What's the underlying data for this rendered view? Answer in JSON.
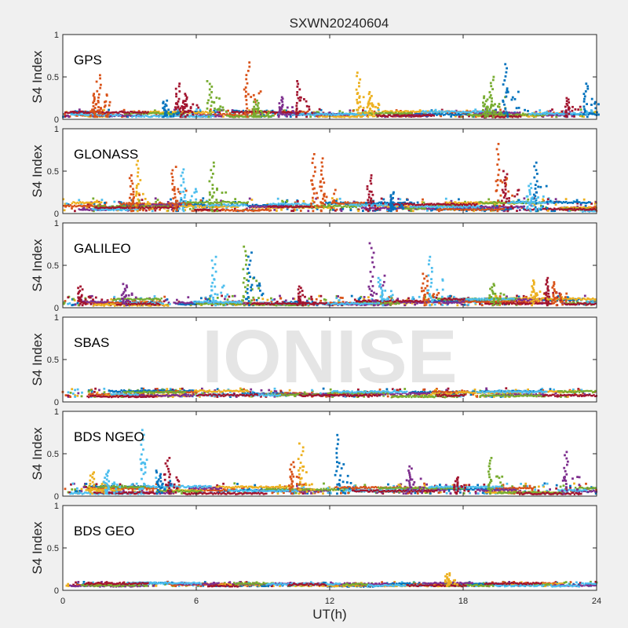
{
  "title": "SXWN20240604",
  "watermark": "IONISE",
  "xlabel": "UT(h)",
  "xlim": [
    0,
    24
  ],
  "xticks": [
    0,
    6,
    12,
    18,
    24
  ],
  "colors": [
    "#0072bd",
    "#d95319",
    "#edb120",
    "#7e2f8e",
    "#77ac30",
    "#4dbeee",
    "#a2142f"
  ],
  "chart_data": [
    {
      "type": "scatter",
      "panel": "GPS",
      "ylabel": "S4 Index",
      "ylim": [
        0,
        1
      ],
      "yticks": [
        0,
        0.5,
        1
      ],
      "baseline": [
        0.03,
        0.12
      ],
      "spikes": [
        {
          "x": 1.6,
          "peak": 0.52,
          "color": 1
        },
        {
          "x": 1.4,
          "peak": 0.3,
          "color": 1
        },
        {
          "x": 5.2,
          "peak": 0.42,
          "color": 6
        },
        {
          "x": 5.5,
          "peak": 0.3,
          "color": 6
        },
        {
          "x": 4.6,
          "peak": 0.22,
          "color": 0
        },
        {
          "x": 6.6,
          "peak": 0.45,
          "color": 4
        },
        {
          "x": 8.3,
          "peak": 0.67,
          "color": 1
        },
        {
          "x": 8.7,
          "peak": 0.22,
          "color": 4
        },
        {
          "x": 10.6,
          "peak": 0.45,
          "color": 6
        },
        {
          "x": 9.8,
          "peak": 0.26,
          "color": 3
        },
        {
          "x": 13.3,
          "peak": 0.55,
          "color": 2
        },
        {
          "x": 13.8,
          "peak": 0.32,
          "color": 2
        },
        {
          "x": 19.3,
          "peak": 0.5,
          "color": 4
        },
        {
          "x": 19.0,
          "peak": 0.27,
          "color": 4
        },
        {
          "x": 19.9,
          "peak": 0.65,
          "color": 0
        },
        {
          "x": 22.7,
          "peak": 0.25,
          "color": 6
        },
        {
          "x": 23.5,
          "peak": 0.42,
          "color": 0
        }
      ]
    },
    {
      "type": "scatter",
      "panel": "GLONASS",
      "ylabel": "S4 Index",
      "ylim": [
        0,
        1
      ],
      "yticks": [
        0,
        0.5,
        1
      ],
      "baseline": [
        0.03,
        0.18
      ],
      "spikes": [
        {
          "x": 3.4,
          "peak": 0.62,
          "color": 2
        },
        {
          "x": 3.1,
          "peak": 0.45,
          "color": 1
        },
        {
          "x": 5.0,
          "peak": 0.55,
          "color": 1
        },
        {
          "x": 5.4,
          "peak": 0.52,
          "color": 5
        },
        {
          "x": 6.7,
          "peak": 0.6,
          "color": 4
        },
        {
          "x": 11.3,
          "peak": 0.7,
          "color": 1
        },
        {
          "x": 11.7,
          "peak": 0.65,
          "color": 1
        },
        {
          "x": 13.8,
          "peak": 0.45,
          "color": 6
        },
        {
          "x": 14.8,
          "peak": 0.25,
          "color": 0
        },
        {
          "x": 19.6,
          "peak": 0.82,
          "color": 1
        },
        {
          "x": 19.9,
          "peak": 0.5,
          "color": 6
        },
        {
          "x": 21.3,
          "peak": 0.6,
          "color": 0
        },
        {
          "x": 21.0,
          "peak": 0.35,
          "color": 5
        }
      ]
    },
    {
      "type": "scatter",
      "panel": "GALILEO",
      "ylabel": "S4 Index",
      "ylim": [
        0,
        1
      ],
      "yticks": [
        0,
        0.5,
        1
      ],
      "baseline": [
        0.03,
        0.14
      ],
      "spikes": [
        {
          "x": 0.8,
          "peak": 0.25,
          "color": 6
        },
        {
          "x": 2.8,
          "peak": 0.28,
          "color": 3
        },
        {
          "x": 6.8,
          "peak": 0.6,
          "color": 5
        },
        {
          "x": 8.2,
          "peak": 0.72,
          "color": 4
        },
        {
          "x": 8.4,
          "peak": 0.65,
          "color": 0
        },
        {
          "x": 10.7,
          "peak": 0.25,
          "color": 6
        },
        {
          "x": 13.9,
          "peak": 0.76,
          "color": 3
        },
        {
          "x": 14.3,
          "peak": 0.35,
          "color": 5
        },
        {
          "x": 16.5,
          "peak": 0.6,
          "color": 5
        },
        {
          "x": 16.3,
          "peak": 0.4,
          "color": 1
        },
        {
          "x": 19.3,
          "peak": 0.28,
          "color": 4
        },
        {
          "x": 21.2,
          "peak": 0.32,
          "color": 2
        },
        {
          "x": 21.8,
          "peak": 0.35,
          "color": 6
        },
        {
          "x": 22.1,
          "peak": 0.3,
          "color": 1
        }
      ]
    },
    {
      "type": "scatter",
      "panel": "SBAS",
      "ylabel": "S4 Index",
      "ylim": [
        0,
        1
      ],
      "yticks": [
        0,
        0.5,
        1
      ],
      "baseline": [
        0.06,
        0.16
      ],
      "spikes": []
    },
    {
      "type": "scatter",
      "panel": "BDS NGEO",
      "ylabel": "S4 Index",
      "ylim": [
        0,
        1
      ],
      "yticks": [
        0,
        0.5,
        1
      ],
      "baseline": [
        0.03,
        0.15
      ],
      "spikes": [
        {
          "x": 1.3,
          "peak": 0.28,
          "color": 2
        },
        {
          "x": 2.0,
          "peak": 0.3,
          "color": 5
        },
        {
          "x": 3.6,
          "peak": 0.78,
          "color": 5
        },
        {
          "x": 4.3,
          "peak": 0.3,
          "color": 0
        },
        {
          "x": 4.7,
          "peak": 0.45,
          "color": 6
        },
        {
          "x": 10.3,
          "peak": 0.4,
          "color": 1
        },
        {
          "x": 10.7,
          "peak": 0.62,
          "color": 2
        },
        {
          "x": 12.4,
          "peak": 0.72,
          "color": 0
        },
        {
          "x": 15.6,
          "peak": 0.35,
          "color": 3
        },
        {
          "x": 17.7,
          "peak": 0.22,
          "color": 6
        },
        {
          "x": 19.2,
          "peak": 0.45,
          "color": 4
        },
        {
          "x": 22.6,
          "peak": 0.52,
          "color": 3
        }
      ]
    },
    {
      "type": "scatter",
      "panel": "BDS GEO",
      "ylabel": "S4 Index",
      "ylim": [
        0,
        1
      ],
      "yticks": [
        0,
        0.5,
        1
      ],
      "baseline": [
        0.05,
        0.1
      ],
      "spikes": [
        {
          "x": 17.3,
          "peak": 0.2,
          "color": 2
        }
      ]
    }
  ]
}
